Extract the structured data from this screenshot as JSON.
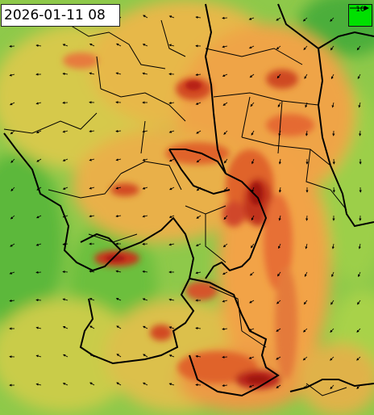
{
  "map": {
    "timestamp": "2026-01-11 08",
    "legend": {
      "value": "10"
    },
    "colors": {
      "calm": "#5cb83a",
      "light": "#c8d04a",
      "moderate": "#f2a346",
      "strong": "#e0632c",
      "gust": "#b82418",
      "border": "#000000",
      "legend_bg": "#00e000"
    },
    "icons": [
      "wind-arrow-icon",
      "legend-arrow-icon"
    ]
  }
}
